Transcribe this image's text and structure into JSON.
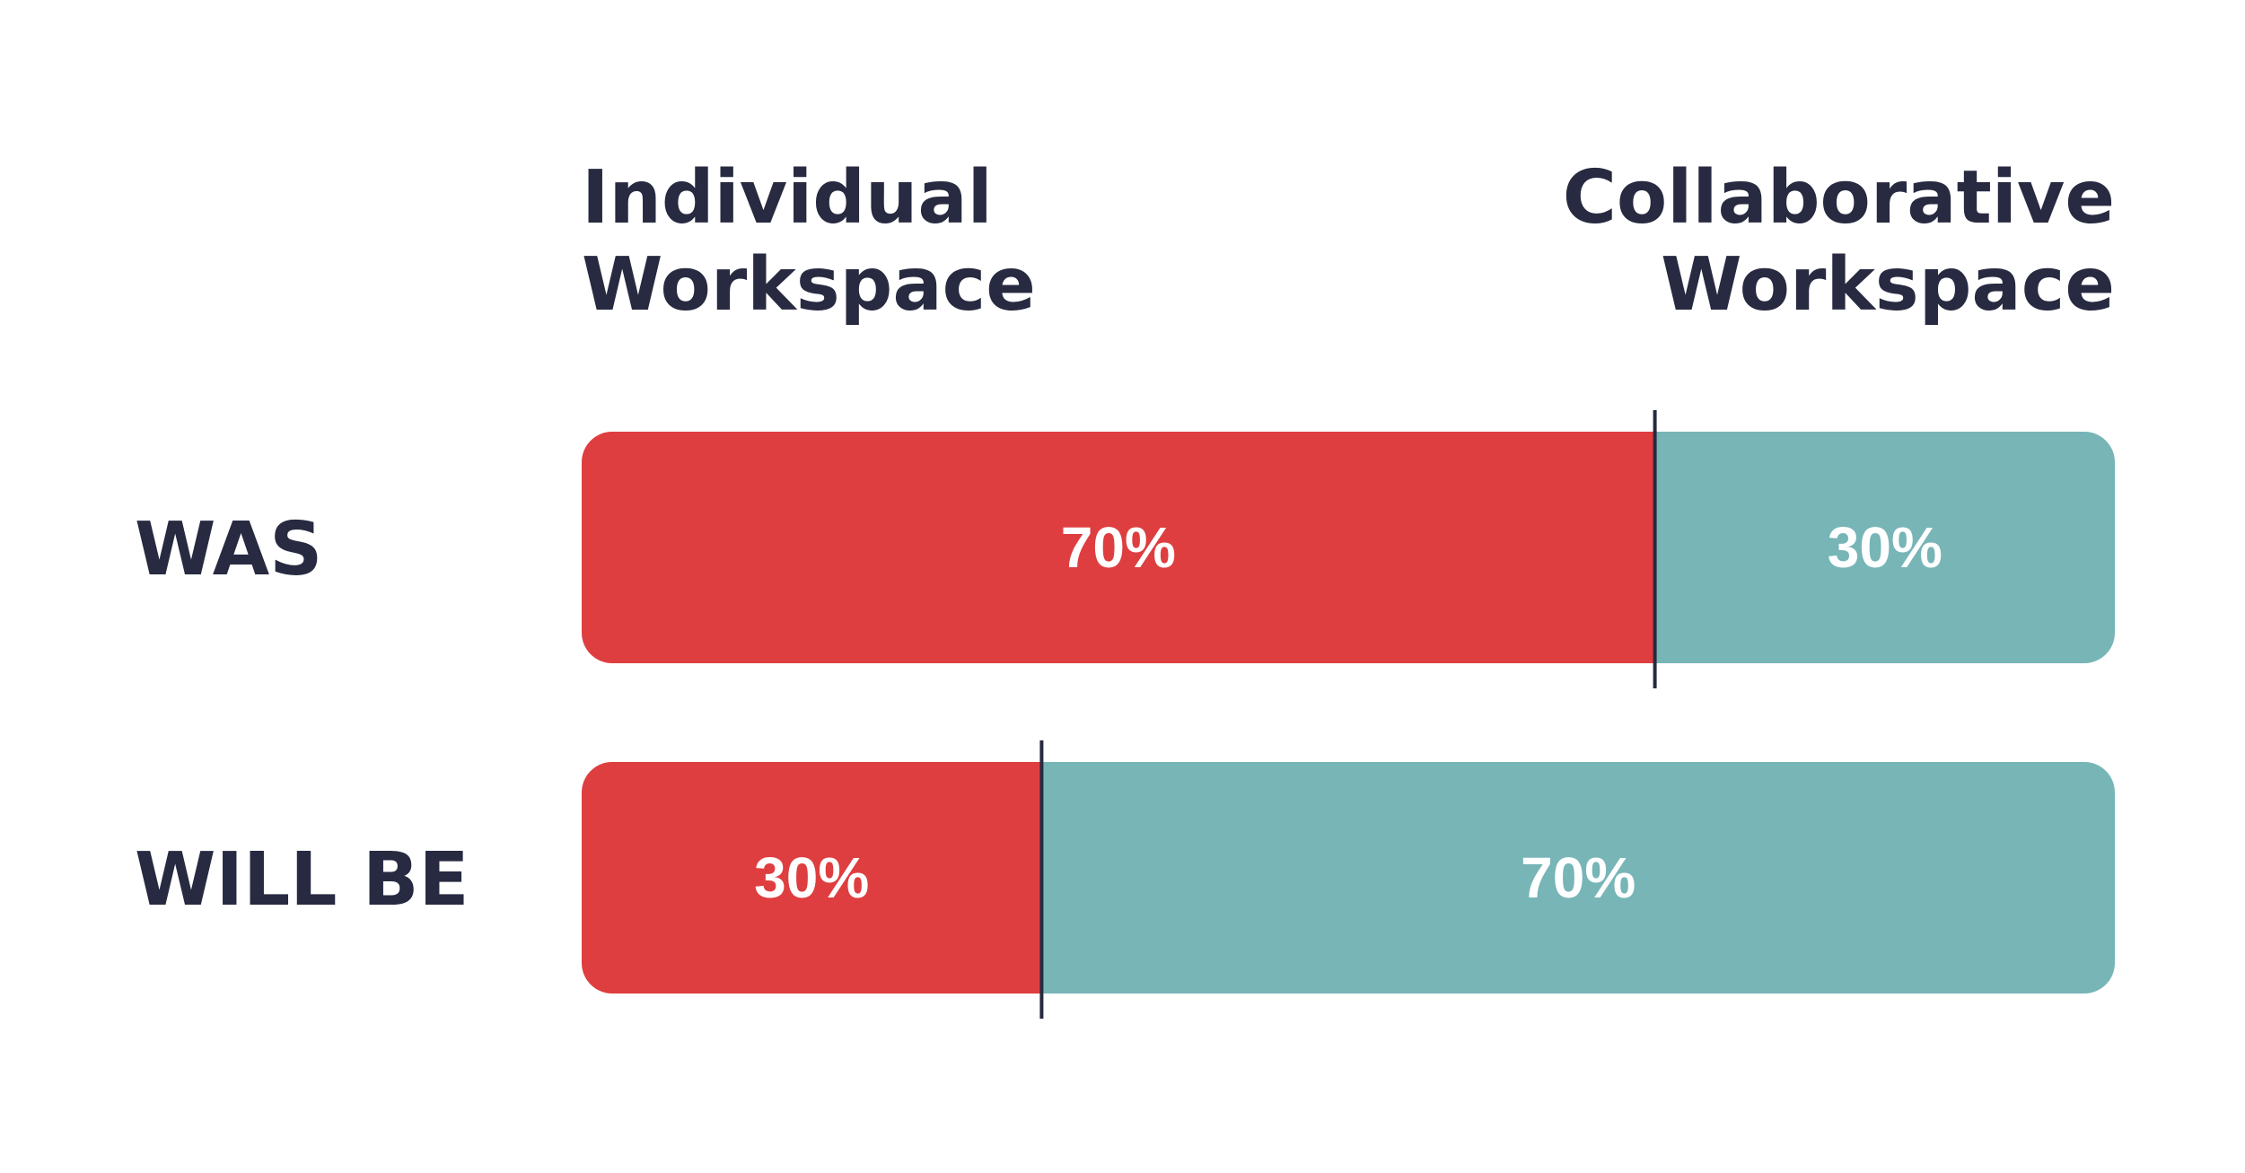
{
  "chart_data": {
    "type": "bar",
    "orientation": "horizontal-stacked",
    "categories": [
      "WAS",
      "WILL BE"
    ],
    "series": [
      {
        "name": "Individual Workspace",
        "values": [
          70,
          30
        ],
        "labels": [
          "70%",
          "30%"
        ]
      },
      {
        "name": "Collaborative Workspace",
        "values": [
          30,
          70
        ],
        "labels": [
          "30%",
          "70%"
        ]
      }
    ],
    "left_heading": [
      "Individual",
      "Workspace"
    ],
    "right_heading": [
      "Collaborative",
      "Workspace"
    ],
    "xlim": [
      0,
      100
    ],
    "grid": false,
    "colors": {
      "individual": "#de3e3f",
      "collaborative": "#77b5b7",
      "divider": "#272a40",
      "text": "#272a40"
    }
  }
}
